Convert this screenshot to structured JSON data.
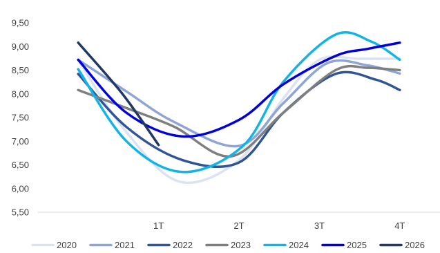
{
  "chart_data": {
    "type": "line",
    "categories": [
      "",
      "1T",
      "2T",
      "3T",
      "4T"
    ],
    "ylim": [
      5.5,
      9.5
    ],
    "yticks": [
      "5,50",
      "6,00",
      "6,50",
      "7,00",
      "7,50",
      "8,00",
      "8,50",
      "9,00",
      "9,50"
    ],
    "grid": false,
    "legend_position": "bottom",
    "series": [
      {
        "name": "2020",
        "color": "#dbe3f2",
        "points": [
          [
            0,
            8.72
          ],
          [
            0.55,
            7.3
          ],
          [
            1.25,
            6.15
          ],
          [
            2.0,
            6.6
          ],
          [
            2.55,
            7.9
          ],
          [
            3.0,
            8.72
          ],
          [
            3.5,
            8.74
          ],
          [
            4.0,
            8.74
          ]
        ]
      },
      {
        "name": "2021",
        "color": "#8ea5d6",
        "points": [
          [
            0,
            8.72
          ],
          [
            0.6,
            8.05
          ],
          [
            1.2,
            7.4
          ],
          [
            2.0,
            6.9
          ],
          [
            2.55,
            7.8
          ],
          [
            3.1,
            8.65
          ],
          [
            3.6,
            8.6
          ],
          [
            4.0,
            8.43
          ]
        ]
      },
      {
        "name": "2022",
        "color": "#2f5597",
        "points": [
          [
            0,
            8.42
          ],
          [
            0.6,
            7.3
          ],
          [
            1.3,
            6.6
          ],
          [
            2.0,
            6.55
          ],
          [
            2.55,
            7.6
          ],
          [
            3.2,
            8.42
          ],
          [
            3.7,
            8.3
          ],
          [
            4.0,
            8.08
          ]
        ]
      },
      {
        "name": "2023",
        "color": "#7f7f7f",
        "points": [
          [
            0,
            8.08
          ],
          [
            0.6,
            7.7
          ],
          [
            1.2,
            7.3
          ],
          [
            1.9,
            6.68
          ],
          [
            2.55,
            7.6
          ],
          [
            3.2,
            8.5
          ],
          [
            3.6,
            8.55
          ],
          [
            4.0,
            8.5
          ]
        ]
      },
      {
        "name": "2024",
        "color": "#12b4e8",
        "points": [
          [
            0,
            8.52
          ],
          [
            0.6,
            7.0
          ],
          [
            1.3,
            6.35
          ],
          [
            2.05,
            6.9
          ],
          [
            2.55,
            8.25
          ],
          [
            3.2,
            9.25
          ],
          [
            3.65,
            9.1
          ],
          [
            4.0,
            8.72
          ]
        ]
      },
      {
        "name": "2025",
        "color": "#0000dd",
        "points": [
          [
            0,
            8.72
          ],
          [
            0.6,
            7.6
          ],
          [
            1.3,
            7.1
          ],
          [
            2.0,
            7.45
          ],
          [
            2.55,
            8.2
          ],
          [
            3.2,
            8.8
          ],
          [
            3.6,
            8.95
          ],
          [
            4.0,
            9.08
          ]
        ]
      },
      {
        "name": "2026",
        "color": "#1f3864",
        "points": [
          [
            0,
            9.08
          ],
          [
            0.55,
            8.0
          ],
          [
            1.0,
            6.92
          ]
        ]
      }
    ]
  }
}
